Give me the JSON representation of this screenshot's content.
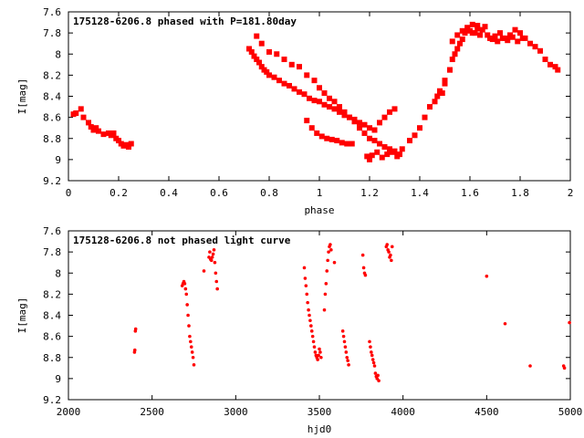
{
  "chart_data": [
    {
      "type": "scatter",
      "title": "175128-6206.8 phased with P=181.80day",
      "xlabel": "phase",
      "ylabel": "I[mag]",
      "xlim": [
        0,
        2
      ],
      "ylim": [
        9.2,
        7.6
      ],
      "y_inverted": true,
      "xticks": [
        "0",
        "0.2",
        "0.4",
        "0.6",
        "0.8",
        "1",
        "1.2",
        "1.4",
        "1.6",
        "1.8",
        "2"
      ],
      "yticks": [
        "7.6",
        "7.8",
        "8",
        "8.2",
        "8.4",
        "8.6",
        "8.8",
        "9",
        "9.2"
      ],
      "grid": false,
      "legend": "none",
      "marker_color": "#ff0000",
      "series": [
        {
          "x": [
            0.02,
            0.03,
            0.05,
            0.06,
            0.08,
            0.09,
            0.1,
            0.11,
            0.12,
            0.14,
            0.16,
            0.17,
            0.18,
            0.19,
            0.2,
            0.21,
            0.22,
            0.23,
            0.24,
            0.25,
            0.72,
            0.73,
            0.74,
            0.75,
            0.76,
            0.77,
            0.78,
            0.79,
            0.8,
            0.82,
            0.84,
            0.86,
            0.88,
            0.9,
            0.92,
            0.94,
            0.96,
            0.98,
            1.0,
            1.02,
            1.04,
            1.06,
            1.08,
            1.1,
            1.12,
            1.14,
            1.16,
            1.18,
            1.2,
            1.22,
            1.24,
            1.26,
            1.28,
            1.3,
            0.75,
            0.77,
            0.8,
            0.83,
            0.86,
            0.89,
            0.92,
            0.95,
            0.98,
            1.0,
            1.02,
            1.04,
            1.06,
            1.08,
            1.1,
            1.12,
            1.14,
            1.16,
            1.18,
            1.2,
            1.22,
            1.24,
            1.26,
            1.28,
            1.3,
            1.32,
            0.95,
            0.97,
            0.99,
            1.01,
            1.03,
            1.05,
            1.07,
            1.09,
            1.11,
            1.13,
            1.19,
            1.2,
            1.21,
            1.23,
            1.25,
            1.27,
            1.29,
            1.31,
            1.33,
            1.36,
            1.38,
            1.4,
            1.42,
            1.44,
            1.46,
            1.48,
            1.5,
            1.52,
            1.53,
            1.54,
            1.55,
            1.56,
            1.57,
            1.58,
            1.59,
            1.6,
            1.61,
            1.62,
            1.63,
            1.64,
            1.66,
            1.68,
            1.7,
            1.72,
            1.74,
            1.76,
            1.78,
            1.8,
            1.82,
            1.84,
            1.86,
            1.88,
            1.9,
            1.92,
            1.94,
            1.95,
            1.53,
            1.55,
            1.57,
            1.59,
            1.61,
            1.63,
            1.65,
            1.67,
            1.69,
            1.71,
            1.73,
            1.75,
            1.77,
            1.79,
            1.81,
            1.5,
            1.52,
            1.49,
            1.47
          ],
          "y": [
            8.57,
            8.56,
            8.52,
            8.6,
            8.65,
            8.69,
            8.72,
            8.7,
            8.73,
            8.76,
            8.75,
            8.77,
            8.75,
            8.8,
            8.82,
            8.85,
            8.87,
            8.86,
            8.88,
            8.85,
            7.95,
            7.98,
            8.02,
            8.05,
            8.08,
            8.12,
            8.15,
            8.17,
            8.2,
            8.22,
            8.25,
            8.28,
            8.3,
            8.33,
            8.36,
            8.38,
            8.42,
            8.44,
            8.45,
            8.48,
            8.5,
            8.52,
            8.55,
            8.58,
            8.6,
            8.62,
            8.65,
            8.67,
            8.7,
            8.72,
            8.65,
            8.6,
            8.55,
            8.52,
            7.83,
            7.9,
            7.98,
            8.0,
            8.05,
            8.1,
            8.12,
            8.2,
            8.25,
            8.32,
            8.37,
            8.42,
            8.45,
            8.5,
            8.55,
            8.6,
            8.64,
            8.7,
            8.75,
            8.8,
            8.82,
            8.85,
            8.88,
            8.9,
            8.92,
            8.95,
            8.63,
            8.7,
            8.75,
            8.78,
            8.8,
            8.81,
            8.82,
            8.84,
            8.85,
            8.85,
            8.97,
            9.0,
            8.96,
            8.93,
            8.98,
            8.95,
            8.93,
            8.97,
            8.9,
            8.82,
            8.77,
            8.7,
            8.6,
            8.5,
            8.45,
            8.35,
            8.28,
            8.15,
            8.05,
            8.0,
            7.95,
            7.9,
            7.86,
            7.8,
            7.75,
            7.78,
            7.72,
            7.8,
            7.76,
            7.82,
            7.74,
            7.85,
            7.83,
            7.8,
            7.85,
            7.82,
            7.77,
            7.8,
            7.85,
            7.9,
            7.93,
            7.97,
            8.05,
            8.1,
            8.12,
            8.15,
            7.88,
            7.82,
            7.78,
            7.75,
            7.8,
            7.73,
            7.77,
            7.82,
            7.86,
            7.88,
            7.85,
            7.87,
            7.84,
            7.88,
            7.85,
            8.25,
            8.15,
            8.37,
            8.4
          ]
        }
      ]
    },
    {
      "type": "scatter",
      "title": "175128-6206.8 not phased light curve",
      "xlabel": "hjd0",
      "ylabel": "I[mag]",
      "xlim": [
        2000,
        5000
      ],
      "ylim": [
        9.2,
        7.6
      ],
      "y_inverted": true,
      "xticks": [
        "2000",
        "2500",
        "3000",
        "3500",
        "4000",
        "4500",
        "5000"
      ],
      "yticks": [
        "7.6",
        "7.8",
        "8",
        "8.2",
        "8.4",
        "8.6",
        "8.8",
        "9",
        "9.2"
      ],
      "grid": false,
      "legend": "none",
      "marker_color": "#ff0000",
      "series": [
        {
          "x": [
            2395,
            2397,
            2400,
            2402,
            2680,
            2685,
            2690,
            2695,
            2700,
            2705,
            2710,
            2715,
            2720,
            2725,
            2730,
            2735,
            2740,
            2745,
            2750,
            2810,
            2840,
            2845,
            2850,
            2855,
            2860,
            2865,
            2870,
            2875,
            2880,
            2885,
            2890,
            3410,
            3415,
            3420,
            3425,
            3430,
            3435,
            3440,
            3445,
            3450,
            3455,
            3460,
            3465,
            3470,
            3475,
            3480,
            3485,
            3490,
            3495,
            3500,
            3505,
            3510,
            3530,
            3535,
            3540,
            3545,
            3550,
            3555,
            3560,
            3565,
            3570,
            3590,
            3640,
            3645,
            3650,
            3655,
            3660,
            3665,
            3670,
            3675,
            3760,
            3765,
            3770,
            3775,
            3800,
            3805,
            3810,
            3815,
            3820,
            3825,
            3830,
            3835,
            3840,
            3845,
            3850,
            3855,
            3900,
            3905,
            3910,
            3915,
            3920,
            3925,
            3930,
            3935,
            4500,
            4610,
            4760,
            4960,
            4965,
            4995
          ],
          "y": [
            8.75,
            8.73,
            8.55,
            8.53,
            8.12,
            8.1,
            8.08,
            8.1,
            8.15,
            8.2,
            8.3,
            8.4,
            8.5,
            8.6,
            8.65,
            8.7,
            8.75,
            8.8,
            8.87,
            7.98,
            7.85,
            7.8,
            7.87,
            7.88,
            7.85,
            7.82,
            7.78,
            7.9,
            8.0,
            8.08,
            8.15,
            7.95,
            8.05,
            8.12,
            8.2,
            8.28,
            8.35,
            8.4,
            8.45,
            8.5,
            8.55,
            8.6,
            8.65,
            8.7,
            8.75,
            8.78,
            8.8,
            8.82,
            8.78,
            8.72,
            8.75,
            8.8,
            8.35,
            8.2,
            8.1,
            7.98,
            7.88,
            7.8,
            7.75,
            7.73,
            7.78,
            7.9,
            8.55,
            8.6,
            8.65,
            8.7,
            8.75,
            8.8,
            8.83,
            8.87,
            7.83,
            7.95,
            8.0,
            8.02,
            8.65,
            8.7,
            8.75,
            8.78,
            8.82,
            8.85,
            8.88,
            8.95,
            8.98,
            9.0,
            8.97,
            9.02,
            7.75,
            7.73,
            7.78,
            7.8,
            7.85,
            7.83,
            7.88,
            7.75,
            8.03,
            8.48,
            8.88,
            8.88,
            8.9,
            8.47
          ]
        }
      ]
    }
  ]
}
